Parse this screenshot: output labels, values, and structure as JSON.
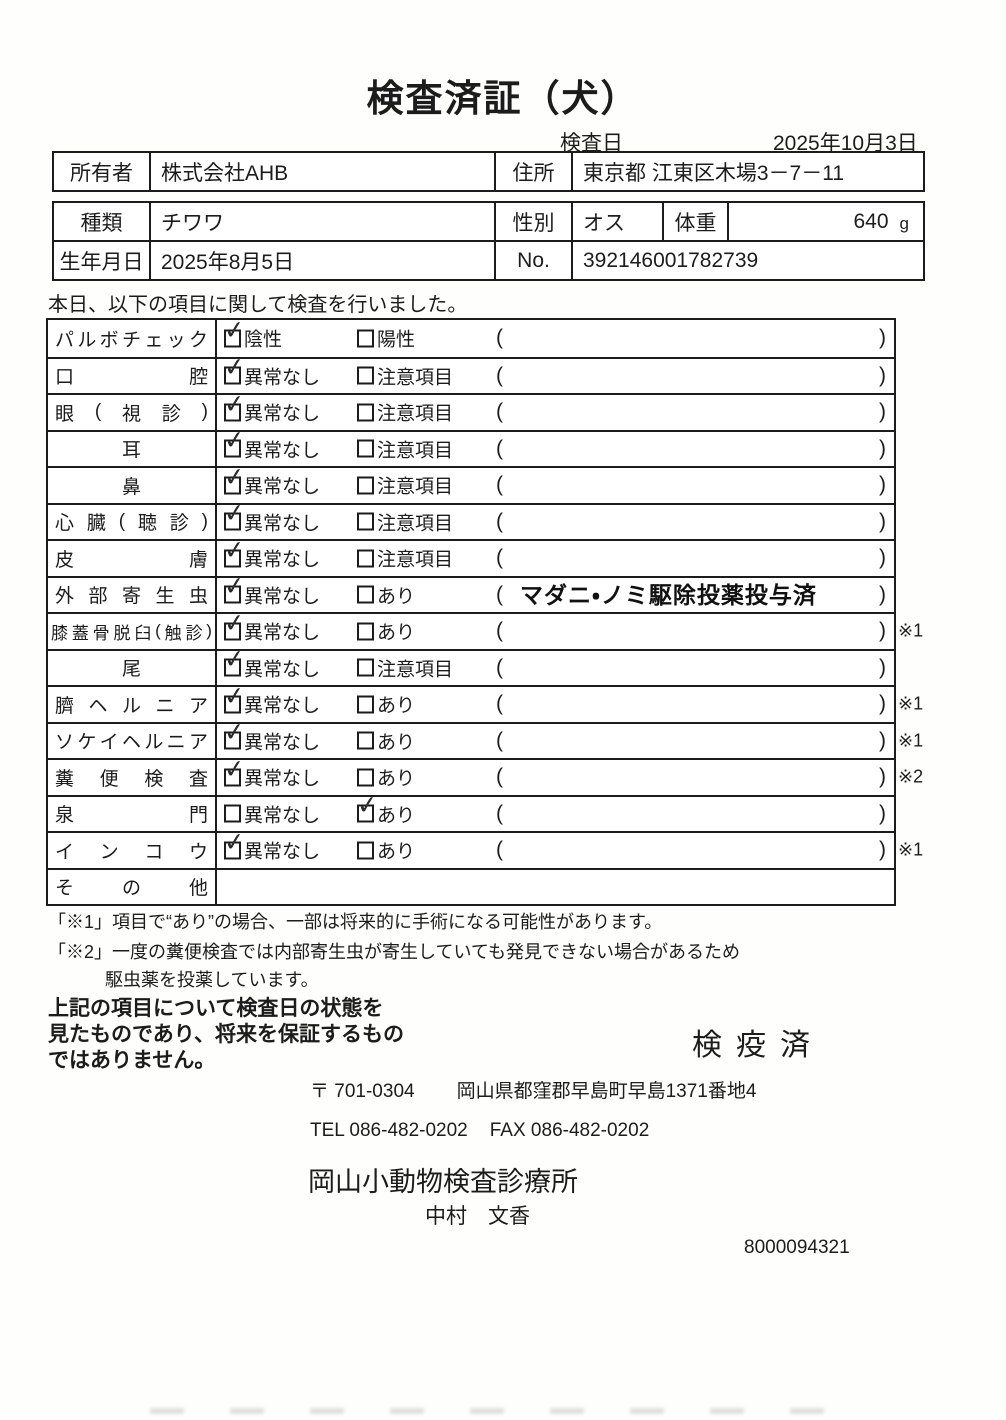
{
  "title": "検査済証（犬）",
  "inspection": {
    "label": "検査日",
    "value": "2025年10月3日"
  },
  "owner": {
    "owner_label": "所有者",
    "owner_value": "株式会社AHB",
    "address_label": "住所",
    "address_value": "東京都 江東区木場3－7－11"
  },
  "pet": {
    "breed_label": "種類",
    "breed_value": "チワワ",
    "sex_label": "性別",
    "sex_value": "オス",
    "weight_label": "体重",
    "weight_value": "640",
    "weight_unit": "g",
    "birth_label": "生年月日",
    "birth_value": "2025年8月5日",
    "no_label": "No.",
    "no_value": "392146001782739"
  },
  "intro": "本日、以下の項目に関して検査を行いました。",
  "checklist": {
    "rows": [
      {
        "item": "パルボチェック",
        "opt1": "陰性",
        "opt1_checked": true,
        "opt2": "陽性",
        "opt2_checked": false,
        "note": "",
        "mark": ""
      },
      {
        "item": "口腔",
        "opt1": "異常なし",
        "opt1_checked": true,
        "opt2": "注意項目",
        "opt2_checked": false,
        "note": "",
        "mark": ""
      },
      {
        "item": "眼(視診)",
        "opt1": "異常なし",
        "opt1_checked": true,
        "opt2": "注意項目",
        "opt2_checked": false,
        "note": "",
        "mark": ""
      },
      {
        "item": "耳",
        "opt1": "異常なし",
        "opt1_checked": true,
        "opt2": "注意項目",
        "opt2_checked": false,
        "note": "",
        "mark": ""
      },
      {
        "item": "鼻",
        "opt1": "異常なし",
        "opt1_checked": true,
        "opt2": "注意項目",
        "opt2_checked": false,
        "note": "",
        "mark": ""
      },
      {
        "item": "心臓(聴診)",
        "opt1": "異常なし",
        "opt1_checked": true,
        "opt2": "注意項目",
        "opt2_checked": false,
        "note": "",
        "mark": ""
      },
      {
        "item": "皮膚",
        "opt1": "異常なし",
        "opt1_checked": true,
        "opt2": "注意項目",
        "opt2_checked": false,
        "note": "",
        "mark": ""
      },
      {
        "item": "外部寄生虫",
        "opt1": "異常なし",
        "opt1_checked": true,
        "opt2": "あり",
        "opt2_checked": false,
        "note": "マダニ・ノミ駆除投薬投与済",
        "mark": ""
      },
      {
        "item": "膝蓋骨脱臼(触診)",
        "opt1": "異常なし",
        "opt1_checked": true,
        "opt2": "あり",
        "opt2_checked": false,
        "note": "",
        "mark": "※1"
      },
      {
        "item": "尾",
        "opt1": "異常なし",
        "opt1_checked": true,
        "opt2": "注意項目",
        "opt2_checked": false,
        "note": "",
        "mark": ""
      },
      {
        "item": "臍ヘルニア",
        "opt1": "異常なし",
        "opt1_checked": true,
        "opt2": "あり",
        "opt2_checked": false,
        "note": "",
        "mark": "※1"
      },
      {
        "item": "ソケイヘルニア",
        "opt1": "異常なし",
        "opt1_checked": true,
        "opt2": "あり",
        "opt2_checked": false,
        "note": "",
        "mark": "※1"
      },
      {
        "item": "糞便検査",
        "opt1": "異常なし",
        "opt1_checked": true,
        "opt2": "あり",
        "opt2_checked": false,
        "note": "",
        "mark": "※2"
      },
      {
        "item": "泉門",
        "opt1": "異常なし",
        "opt1_checked": false,
        "opt2": "あり",
        "opt2_checked": true,
        "note": "",
        "mark": ""
      },
      {
        "item": "インコウ",
        "opt1": "異常なし",
        "opt1_checked": true,
        "opt2": "あり",
        "opt2_checked": false,
        "note": "",
        "mark": "※1"
      },
      {
        "item": "その他",
        "opt1": null,
        "opt1_checked": false,
        "opt2": null,
        "opt2_checked": false,
        "note": "",
        "mark": ""
      }
    ]
  },
  "footnotes": [
    "「※1」項目で“あり”の場合、一部は将来的に手術になる可能性があります。",
    "「※2」一度の糞便検査では内部寄生虫が寄生していても発見できない場合があるため",
    "駆虫薬を投薬しています。"
  ],
  "disclaimer": [
    "上記の項目について検査日の状態を",
    "見たものであり、将来を保証するもの",
    "ではありません。"
  ],
  "quarantine_stamp": "検疫済",
  "clinic": {
    "postal_mark": "〒 701-0304",
    "address": "岡山県都窪郡早島町早島1371番地4",
    "tel": "TEL 086-482-0202",
    "fax": "FAX 086-482-0202",
    "name": "岡山小動物検査診療所",
    "vet": "中村　文香",
    "serial": "8000094321"
  }
}
